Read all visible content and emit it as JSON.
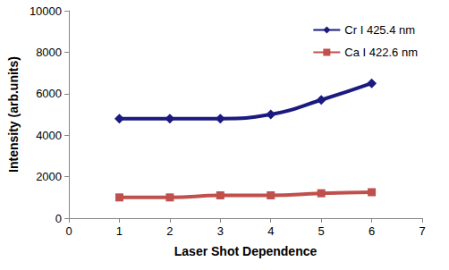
{
  "chart_data": {
    "type": "line",
    "x_label": "Laser Shot Dependence",
    "y_label": "Intensity (arb.units)",
    "x": [
      1,
      2,
      3,
      4,
      5,
      6
    ],
    "series": [
      {
        "name": "Cr I 425.4 nm",
        "color": "#1a1a80",
        "marker": "diamond",
        "line_style": "solid",
        "values": [
          4800,
          4800,
          4800,
          5000,
          5700,
          6500
        ]
      },
      {
        "name": "Ca I 422.6 nm",
        "color": "#c0504d",
        "marker": "square",
        "line_style": "solid",
        "values": [
          1000,
          1000,
          1100,
          1100,
          1200,
          1250
        ]
      }
    ],
    "xlim": [
      0,
      7
    ],
    "xticks": [
      0,
      1,
      2,
      3,
      4,
      5,
      6,
      7
    ],
    "ylim": [
      0,
      10000
    ],
    "yticks": [
      0,
      2000,
      4000,
      6000,
      8000,
      10000
    ],
    "grid": false,
    "legend": "upper right"
  }
}
